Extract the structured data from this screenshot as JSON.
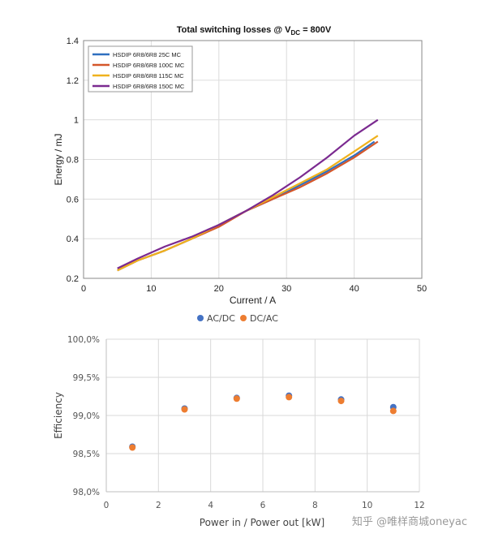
{
  "chart_data": [
    {
      "type": "line",
      "title_main": "Total switching losses @ V",
      "title_sub": "DC",
      "title_tail": " = 800V",
      "xlabel": "Current / A",
      "ylabel": "Energy / mJ",
      "xlim": [
        0,
        50
      ],
      "ylim": [
        0.2,
        1.4
      ],
      "xticks": [
        0,
        10,
        20,
        30,
        40,
        50
      ],
      "yticks": [
        0.2,
        0.4,
        0.6,
        0.8,
        1,
        1.2,
        1.4
      ],
      "grid": true,
      "legend_position": "top-left",
      "series": [
        {
          "name": "HSDIP 6R8/6R8 25C MC",
          "color": "#2f6fbf",
          "x": [
            5,
            8,
            12,
            16,
            20,
            24,
            28,
            32,
            36,
            40,
            43
          ],
          "y": [
            0.24,
            0.29,
            0.34,
            0.4,
            0.47,
            0.54,
            0.6,
            0.67,
            0.74,
            0.82,
            0.89
          ]
        },
        {
          "name": "HSDIP 6R8/6R8 100C MC",
          "color": "#d4572a",
          "x": [
            5,
            8,
            12,
            16,
            20,
            24,
            28,
            32,
            36,
            40,
            43.5
          ],
          "y": [
            0.24,
            0.29,
            0.34,
            0.4,
            0.46,
            0.54,
            0.6,
            0.66,
            0.73,
            0.81,
            0.89
          ]
        },
        {
          "name": "HSDIP 6R8/6R8 115C MC",
          "color": "#efb21e",
          "x": [
            5,
            8,
            12,
            16,
            20,
            24,
            28,
            32,
            36,
            40,
            43.5
          ],
          "y": [
            0.24,
            0.29,
            0.34,
            0.4,
            0.47,
            0.54,
            0.61,
            0.68,
            0.75,
            0.84,
            0.92
          ]
        },
        {
          "name": "HSDIP 6R8/6R8 150C MC",
          "color": "#7b2a90",
          "x": [
            5,
            8,
            12,
            16,
            20,
            24,
            28,
            32,
            36,
            40,
            43.5
          ],
          "y": [
            0.25,
            0.3,
            0.36,
            0.41,
            0.47,
            0.54,
            0.62,
            0.71,
            0.81,
            0.92,
            1.0
          ]
        }
      ]
    },
    {
      "type": "scatter",
      "xlabel": "Power in / Power out [kW]",
      "ylabel": "Efficiency",
      "xlim": [
        0,
        12
      ],
      "ylim": [
        98.0,
        100.0
      ],
      "xticks": [
        "0",
        "2",
        "4",
        "6",
        "8",
        "10",
        "12"
      ],
      "yticks": [
        "98,0%",
        "98,5%",
        "99,0%",
        "99,5%",
        "100,0%"
      ],
      "grid": true,
      "legend_position": "top",
      "series": [
        {
          "name": "AC/DC",
          "color": "#4472c4",
          "x": [
            1,
            3,
            5,
            7,
            9,
            11
          ],
          "y": [
            98.59,
            99.09,
            99.23,
            99.26,
            99.21,
            99.11
          ]
        },
        {
          "name": "DC/AC",
          "color": "#ed7d31",
          "x": [
            1,
            3,
            5,
            7,
            9,
            11
          ],
          "y": [
            98.58,
            99.08,
            99.22,
            99.24,
            99.19,
            99.06
          ]
        }
      ]
    }
  ],
  "watermark": "知乎 @唯样商城oneyac"
}
